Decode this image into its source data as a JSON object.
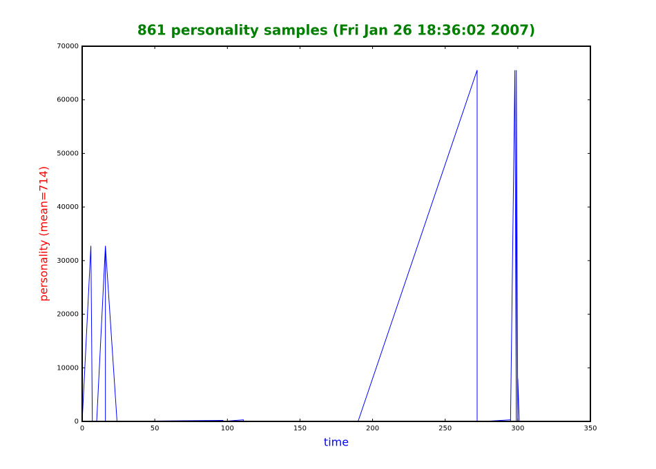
{
  "chart_data": {
    "type": "line",
    "title": "861 personality samples (Fri Jan 26 18:36:02 2007)",
    "x_label": "time",
    "y_label": "personality (mean=714)",
    "x": [
      0,
      6,
      7,
      10,
      16,
      16,
      16,
      24,
      97,
      97,
      111,
      111,
      190,
      272,
      272,
      277,
      295,
      295,
      298,
      299,
      299,
      300,
      300,
      301,
      303
    ],
    "series": [
      {
        "name": "personality",
        "color": "#0000ff",
        "values": [
          0,
          32768,
          0,
          0,
          32768,
          0,
          32768,
          0,
          200,
          0,
          300,
          0,
          0,
          65535,
          0,
          0,
          300,
          0,
          65535,
          0,
          65535,
          0,
          8000,
          0,
          0
        ]
      }
    ],
    "xlim": [
      0,
      350
    ],
    "xticks": [
      0,
      50,
      100,
      150,
      200,
      250,
      300,
      350
    ],
    "ylim": [
      0,
      70000
    ],
    "yticks": [
      0,
      10000,
      20000,
      30000,
      40000,
      50000,
      60000,
      70000
    ],
    "title_color": "#007f00",
    "x_label_color": "#0000ff",
    "y_label_color": "#ff0000"
  }
}
